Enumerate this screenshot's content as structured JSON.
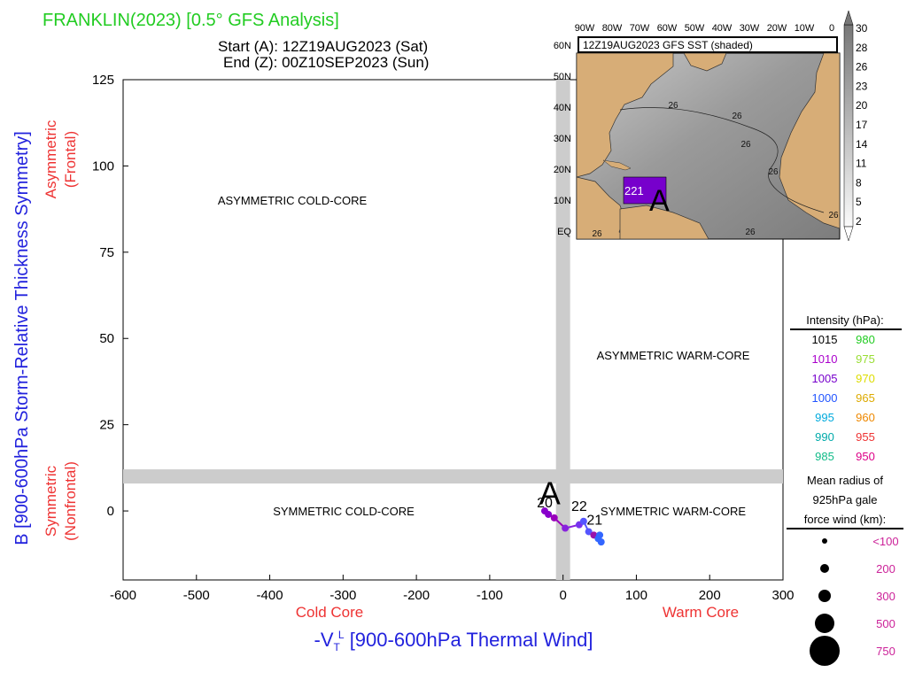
{
  "header": {
    "title": "FRANKLIN(2023) [0.5° GFS Analysis]",
    "start_line": "Start (A): 12Z19AUG2023 (Sat)",
    "end_line": "End (Z): 00Z10SEP2023 (Sun)"
  },
  "colors": {
    "title_green": "#22cc22",
    "axis_blue": "#2222dd",
    "label_red": "#ee3333",
    "quadrant_band": "#cccccc",
    "radius_magenta": "#cc2299"
  },
  "chart_data": {
    "type": "scatter",
    "xlabel": "-V",
    "xlabel_sub": "T",
    "xlabel_sup": "L",
    "xlabel_rest": " [900-600hPa Thermal Wind]",
    "ylabel": "B [900-600hPa Storm-Relative Thickness Symmetry]",
    "xlim": [
      -600,
      300
    ],
    "ylim": [
      -20,
      125
    ],
    "x_ticks": [
      -600,
      -500,
      -400,
      -300,
      -200,
      -100,
      0,
      100,
      200,
      300
    ],
    "y_ticks": [
      0,
      25,
      50,
      75,
      100,
      125
    ],
    "x_side_labels": {
      "left": "Cold Core",
      "right": "Warm Core"
    },
    "y_side_labels": {
      "top": [
        "Asymmetric",
        "(Frontal)"
      ],
      "bottom": [
        "Symmetric",
        "(Nonfrontal)"
      ]
    },
    "band": {
      "x_center": 0,
      "y_center": 10
    },
    "quadrants": {
      "top_left": "ASYMMETRIC COLD-CORE",
      "bottom_left": "SYMMETRIC COLD-CORE",
      "right_middle": "ASYMMETRIC WARM-CORE",
      "bottom_right": "SYMMETRIC WARM-CORE"
    },
    "track": {
      "x": [
        -25,
        -20,
        -12,
        3,
        22,
        28,
        35,
        42,
        48,
        50,
        52
      ],
      "y": [
        0,
        -1,
        -2,
        -5,
        -4,
        -3,
        -6,
        -7,
        -8,
        -7,
        -9
      ],
      "colors": [
        "#8800cc",
        "#8800cc",
        "#9900bb",
        "#8822dd",
        "#7733ee",
        "#5555ff",
        "#5555ff",
        "#9911aa",
        "#3366ff",
        "#3366ff",
        "#3366ff"
      ],
      "day_labels": [
        {
          "text": "A",
          "x": -18,
          "y": 2,
          "size": "large"
        },
        {
          "text": "20",
          "x": -25,
          "y": 1,
          "size": "small"
        },
        {
          "text": "22",
          "x": 22,
          "y": 0,
          "size": "small"
        },
        {
          "text": "21",
          "x": 43,
          "y": -4,
          "size": "small"
        }
      ]
    }
  },
  "inset": {
    "title": "12Z19AUG2023 GFS SST (shaded)",
    "lon_labels": [
      "90W",
      "80W",
      "70W",
      "60W",
      "50W",
      "40W",
      "30W",
      "20W",
      "10W",
      "0"
    ],
    "lat_labels": [
      "60N",
      "50N",
      "40N",
      "30N",
      "20N",
      "10N",
      "EQ"
    ],
    "sst_contour_labels": [
      "26",
      "26",
      "26",
      "26",
      "26",
      "26",
      "26"
    ],
    "storm_labels": [
      "221",
      "A"
    ],
    "colorbar_values": [
      "30",
      "28",
      "26",
      "23",
      "20",
      "17",
      "14",
      "11",
      "8",
      "5",
      "2"
    ]
  },
  "legend": {
    "intensity_title": "Intensity (hPa):",
    "intensity_items": [
      {
        "label": "1015",
        "color": "#000000"
      },
      {
        "label": "980",
        "color": "#22cc22"
      },
      {
        "label": "1010",
        "color": "#aa00cc"
      },
      {
        "label": "975",
        "color": "#99dd33"
      },
      {
        "label": "1005",
        "color": "#7700cc"
      },
      {
        "label": "970",
        "color": "#dddd00"
      },
      {
        "label": "1000",
        "color": "#2255ff"
      },
      {
        "label": "965",
        "color": "#ddaa00"
      },
      {
        "label": "995",
        "color": "#00aadd"
      },
      {
        "label": "960",
        "color": "#ee8800"
      },
      {
        "label": "990",
        "color": "#00aaaa"
      },
      {
        "label": "955",
        "color": "#ee3333"
      },
      {
        "label": "985",
        "color": "#11bb88"
      },
      {
        "label": "950",
        "color": "#dd0088"
      }
    ],
    "radius_title_lines": [
      "Mean radius of",
      "925hPa gale",
      "force wind (km):"
    ],
    "radius_items": [
      "<100",
      "200",
      "300",
      "500",
      "750"
    ]
  }
}
